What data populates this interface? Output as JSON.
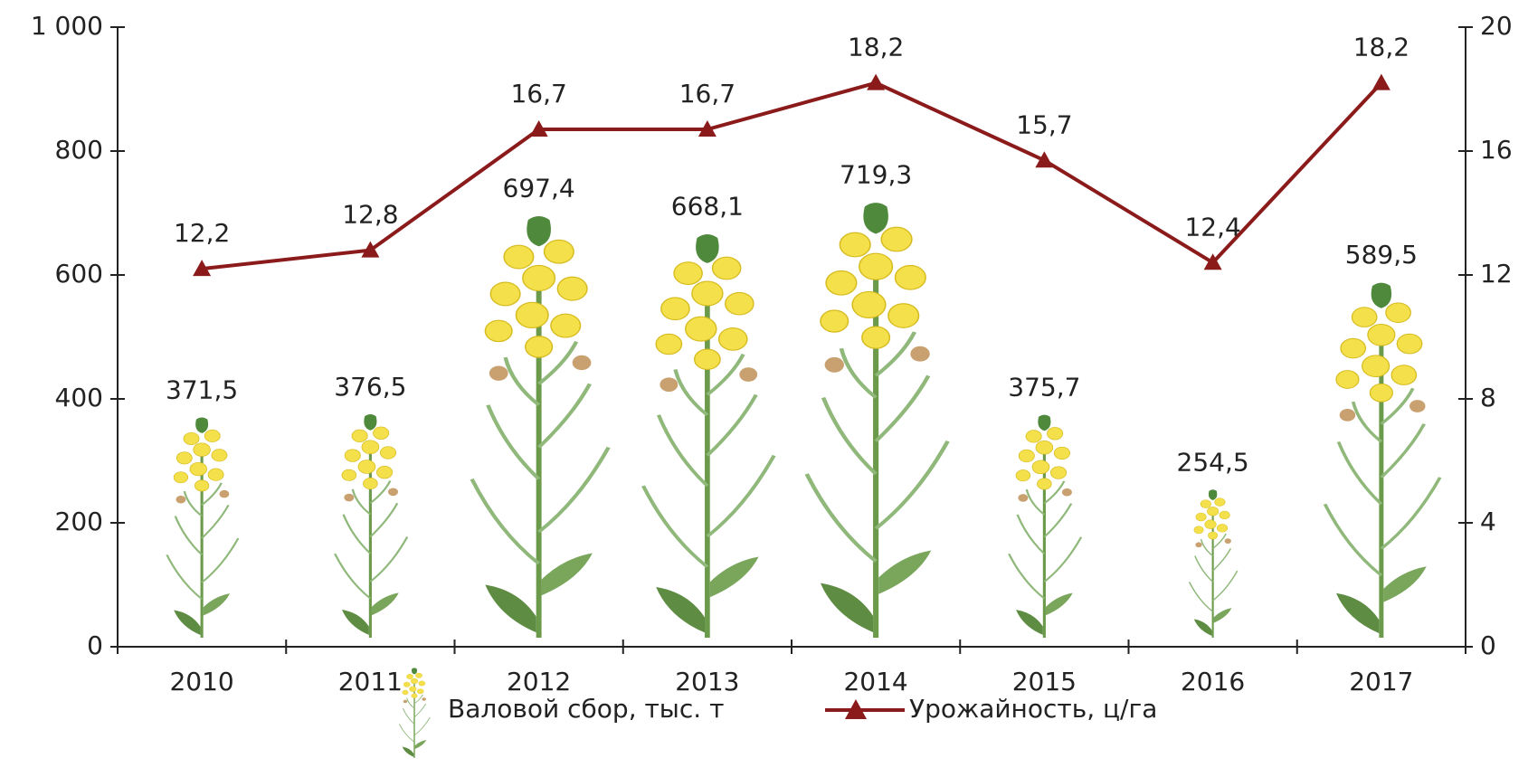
{
  "chart_data": {
    "type": "bar",
    "categories": [
      "2010",
      "2011",
      "2012",
      "2013",
      "2014",
      "2015",
      "2016",
      "2017"
    ],
    "series": [
      {
        "name": "Валовой сбор, тыс. т",
        "type": "bar",
        "color": "#f3e04a",
        "values": [
          371.5,
          376.5,
          697.4,
          668.1,
          719.3,
          375.7,
          254.5,
          589.5
        ],
        "value_labels": [
          "371,5",
          "376,5",
          "697,4",
          "668,1",
          "719,3",
          "375,7",
          "254,5",
          "589,5"
        ]
      },
      {
        "name": "Урожайность, ц/га",
        "type": "line",
        "axis": "y2",
        "color": "#8b1a1a",
        "values": [
          12.2,
          12.8,
          16.7,
          16.7,
          18.2,
          15.7,
          12.4,
          18.2
        ],
        "value_labels": [
          "12,2",
          "12,8",
          "16,7",
          "16,7",
          "18,2",
          "15,7",
          "12,4",
          "18,2"
        ]
      }
    ],
    "ylim": [
      0,
      1000
    ],
    "yticks": [
      0,
      200,
      400,
      600,
      800,
      {
        "value": 1000,
        "label": "1 000"
      }
    ],
    "y2lim": [
      0,
      20
    ],
    "y2ticks": [
      0,
      4,
      8,
      12,
      16,
      20
    ],
    "grid": false
  }
}
